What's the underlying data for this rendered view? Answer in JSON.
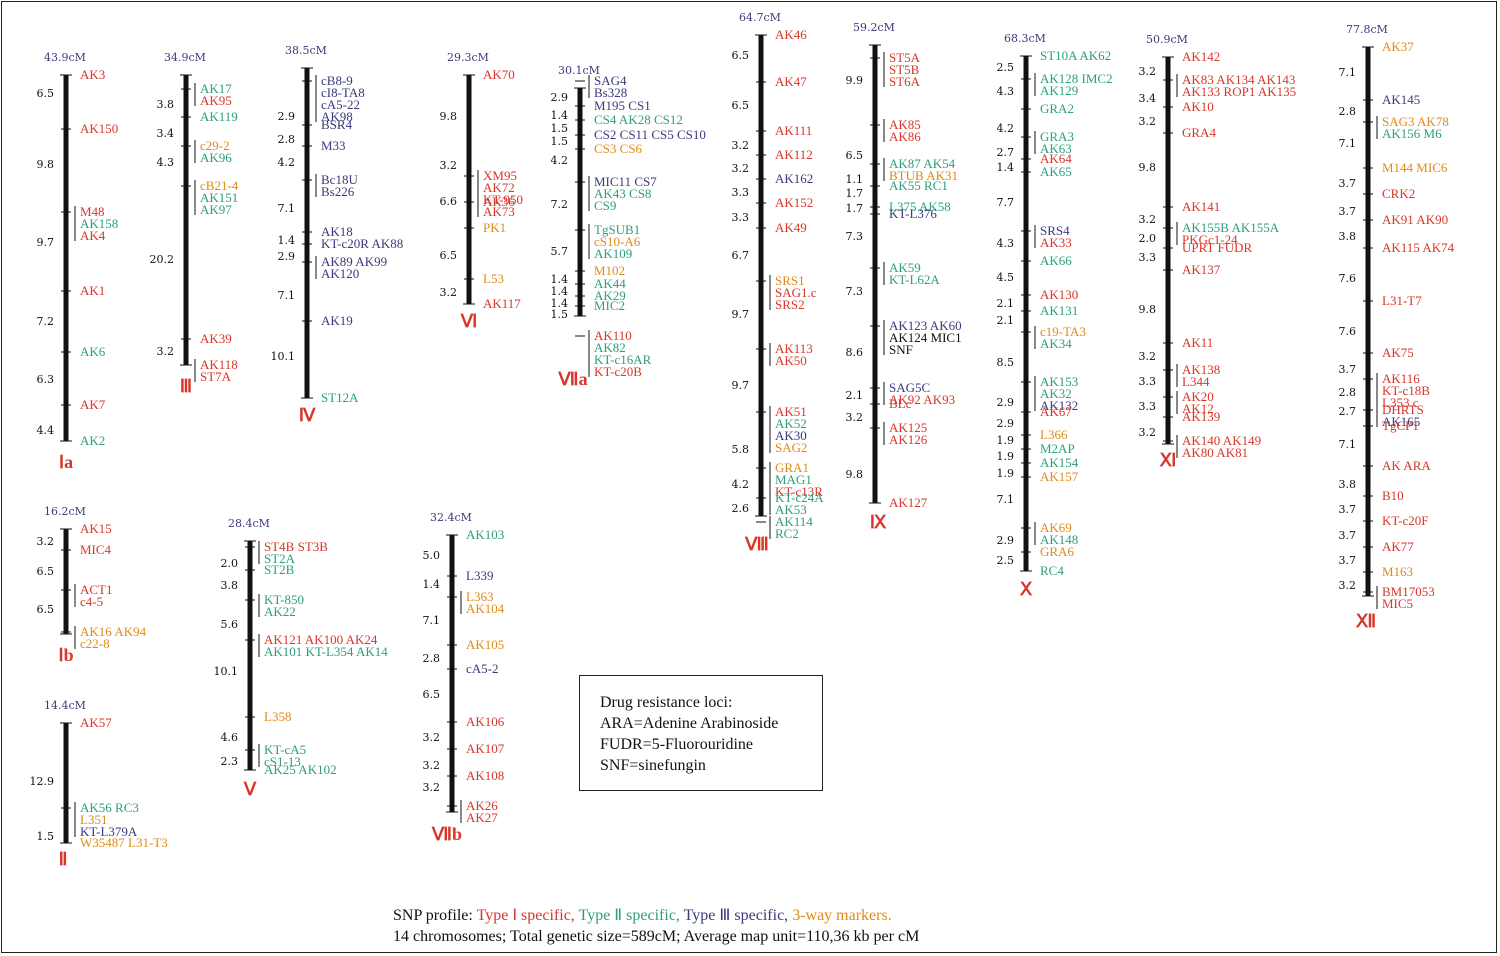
{
  "colors": {
    "I": "#d8362a",
    "II": "#2e9e7c",
    "III": "#3a3a7c",
    "3way": "#e08a18",
    "other": "#111111",
    "axis": "#111111"
  },
  "chromosomes": [
    {
      "id": "Ia",
      "name": "Ⅰa",
      "total": "43.9cM",
      "seg_lengths": [
        6.5,
        9.8,
        9.7,
        7.2,
        6.3,
        4.4
      ],
      "rows": [
        [
          "AK3"
        ],
        [
          "AK150"
        ],
        [],
        [
          "M48",
          "AK158",
          "AK4"
        ],
        [],
        [
          "AK1"
        ],
        [
          "AK6"
        ],
        [
          "AK7"
        ],
        [
          "AK2"
        ]
      ],
      "colors": [
        [
          "I"
        ],
        [
          "I"
        ],
        [],
        [
          "I",
          "II",
          "I"
        ],
        [],
        [
          "I"
        ],
        [
          "II"
        ],
        [
          "I"
        ],
        [
          "II"
        ]
      ]
    },
    {
      "id": "III",
      "name": "Ⅲ",
      "total": "34.9cM",
      "seg_lengths": [
        3.8,
        3.4,
        4.3,
        20.2,
        3.2
      ],
      "rows": [
        [
          "AK17",
          "AK95"
        ],
        [
          "AK119"
        ],
        [
          "c29-2",
          "AK96"
        ],
        [
          "cB21-4",
          "AK151",
          "AK97"
        ],
        [
          "AK39"
        ],
        [
          "AK118",
          "ST7A"
        ]
      ],
      "colors": [
        [
          "II",
          "I"
        ],
        [
          "II"
        ],
        [
          "3way",
          "II"
        ],
        [
          "3way",
          "II",
          "II"
        ],
        [
          "I"
        ],
        [
          "I",
          "I"
        ]
      ]
    },
    {
      "id": "IV",
      "name": "Ⅳ",
      "total": "38.5cM",
      "seg_lengths": [
        2.9,
        2.8,
        4.2,
        7.1,
        1.4,
        2.9,
        7.1,
        10.1
      ],
      "rows": [
        [
          "cB8-9",
          "cI8-TA8",
          "cA5-22",
          "AK98"
        ],
        [
          "BSR4"
        ],
        [
          "M33"
        ],
        [
          "Bc18U",
          "Bs226"
        ],
        [
          "AK18"
        ],
        [
          "KT-c20R AK88"
        ],
        [
          "AK89 AK99",
          "AK120"
        ],
        [
          "AK19"
        ],
        [
          "ST12A"
        ]
      ],
      "colors": [
        [
          "III",
          "III",
          "III",
          "III"
        ],
        [
          "III"
        ],
        [
          "III"
        ],
        [
          "III",
          "III"
        ],
        [
          "III"
        ],
        [
          "III"
        ],
        [
          "III",
          "III"
        ],
        [
          "III"
        ],
        [
          "II"
        ]
      ]
    },
    {
      "id": "VI",
      "name": "Ⅵ",
      "total": "29.3cM",
      "seg_lengths": [
        9.8,
        3.2,
        6.6,
        6.5,
        3.2
      ],
      "rows": [
        [
          "AK70"
        ],
        [
          "XM95",
          "AK72",
          "KT-950",
          "AK73"
        ],
        [
          "AK36"
        ],
        [
          "PK1"
        ],
        [
          "L53"
        ],
        [
          "AK117"
        ]
      ],
      "colors": [
        [
          "I"
        ],
        [
          "I",
          "I",
          "I",
          "I"
        ],
        [
          "I"
        ],
        [
          "3way"
        ],
        [
          "3way"
        ],
        [
          "I"
        ]
      ]
    },
    {
      "id": "VIIa",
      "name": "Ⅶa",
      "total": "30.1cM",
      "seg_lengths": [
        2.9,
        1.4,
        1.5,
        1.5,
        4.2,
        7.2,
        5.7,
        1.4,
        1.4,
        1.4,
        1.5
      ],
      "rows": [
        [
          "SAG4",
          "Bs328"
        ],
        [
          "M195 CS1"
        ],
        [
          "CS4 AK28 CS12"
        ],
        [
          "CS2 CS11 CS5 CS10"
        ],
        [
          "CS3 CS6"
        ],
        [
          "MIC11 CS7",
          "AK43 CS8",
          "CS9"
        ],
        [
          "TgSUB1",
          "cS10-A6",
          "AK109"
        ],
        [
          "M102"
        ],
        [
          "AK44"
        ],
        [
          "AK29"
        ],
        [
          "MIC2"
        ],
        [
          "AK110",
          "AK82",
          "KT-c16AR",
          "KT-c20B"
        ]
      ],
      "colors": [
        [
          "III",
          "III"
        ],
        [
          "III"
        ],
        [
          "II"
        ],
        [
          "III"
        ],
        [
          "3way"
        ],
        [
          "III",
          "II",
          "II"
        ],
        [
          "II",
          "3way",
          "II"
        ],
        [
          "3way"
        ],
        [
          "II"
        ],
        [
          "II"
        ],
        [
          "II"
        ],
        [
          "I",
          "II",
          "II",
          "I"
        ]
      ]
    },
    {
      "id": "VIII",
      "name": "Ⅷ",
      "total": "64.7cM",
      "seg_lengths": [
        6.5,
        6.5,
        3.2,
        3.2,
        3.3,
        3.3,
        6.7,
        9.7,
        9.7,
        5.8,
        4.2,
        2.6
      ],
      "rows": [
        [
          "AK46"
        ],
        [
          "AK47"
        ],
        [
          "AK111"
        ],
        [
          "AK112"
        ],
        [
          "AK162"
        ],
        [
          "AK152"
        ],
        [
          "AK49"
        ],
        [
          "SRS1",
          "SAG1.c",
          "SRS2"
        ],
        [
          "AK113",
          "AK50"
        ],
        [
          "AK51",
          "AK52",
          "AK30",
          "SAG2"
        ],
        [
          "GRA1",
          "MAG1",
          "KT-c13R"
        ],
        [
          "KT-c24A",
          "AK53"
        ],
        [
          "AK114",
          "RC2"
        ]
      ],
      "colors": [
        [
          "I"
        ],
        [
          "I"
        ],
        [
          "I"
        ],
        [
          "I"
        ],
        [
          "III"
        ],
        [
          "I"
        ],
        [
          "I"
        ],
        [
          "3way",
          "I",
          "I"
        ],
        [
          "I",
          "I"
        ],
        [
          "I",
          "II",
          "III",
          "3way"
        ],
        [
          "3way",
          "II",
          "I"
        ],
        [
          "II",
          "II"
        ],
        [
          "II",
          "II"
        ]
      ]
    },
    {
      "id": "IX",
      "name": "Ⅸ",
      "total": "59.2cM",
      "seg_lengths": [
        9.9,
        6.5,
        1.1,
        1.7,
        1.7,
        7.3,
        7.3,
        8.6,
        2.1,
        3.2,
        9.8
      ],
      "rows": [
        [
          "ST5A",
          "ST5B",
          "ST6A"
        ],
        [
          "AK85",
          "AK86"
        ],
        [
          "AK87 AK54",
          "BTUB AK31"
        ],
        [
          "AK55 RC1"
        ],
        [
          "L375 AK58"
        ],
        [
          "KT-L376"
        ],
        [
          "AK59",
          "KT-L62A"
        ],
        [
          "AK123 AK60",
          "AK124 MIC1",
          "SNF"
        ],
        [
          "SAG5C",
          "AK92 AK93"
        ],
        [
          "BLc"
        ],
        [
          "AK125",
          "AK126"
        ],
        [
          "AK127"
        ]
      ],
      "colors": [
        [
          "I",
          "I",
          "I"
        ],
        [
          "I",
          "I"
        ],
        [
          "II",
          "3way"
        ],
        [
          "II"
        ],
        [
          "II"
        ],
        [
          "III"
        ],
        [
          "II",
          "II"
        ],
        [
          "III",
          "other",
          "other"
        ],
        [
          "III",
          "I"
        ],
        [
          "I"
        ],
        [
          "I",
          "I"
        ],
        [
          "I"
        ]
      ]
    },
    {
      "id": "X",
      "name": "Ⅹ",
      "total": "68.3cM",
      "seg_lengths": [
        2.5,
        4.3,
        4.2,
        2.7,
        1.4,
        7.7,
        4.3,
        4.5,
        2.1,
        2.1,
        8.5,
        2.9,
        2.9,
        1.9,
        1.9,
        1.9,
        7.1,
        2.9,
        2.5
      ],
      "rows": [
        [
          "ST10A AK62"
        ],
        [
          "AK128 IMC2",
          "AK129"
        ],
        [
          "GRA2"
        ],
        [
          "GRA3",
          "AK63"
        ],
        [
          "AK64"
        ],
        [
          "AK65"
        ],
        [
          "SRS4",
          "AK33"
        ],
        [
          "AK66"
        ],
        [
          "AK130"
        ],
        [
          "AK131"
        ],
        [
          "c19-TA3",
          "AK34"
        ],
        [
          "AK153",
          "AK32",
          "AK132"
        ],
        [
          "AK67"
        ],
        [
          "L366"
        ],
        [
          "M2AP"
        ],
        [
          "AK154"
        ],
        [
          "AK157"
        ],
        [
          "AK69",
          "AK148"
        ],
        [
          "GRA6"
        ],
        [
          "RC4"
        ]
      ],
      "colors": [
        [
          "II"
        ],
        [
          "II",
          "II"
        ],
        [
          "II"
        ],
        [
          "II",
          "II"
        ],
        [
          "I"
        ],
        [
          "II"
        ],
        [
          "III",
          "I"
        ],
        [
          "II"
        ],
        [
          "I"
        ],
        [
          "II"
        ],
        [
          "3way",
          "II"
        ],
        [
          "II",
          "II",
          "III"
        ],
        [
          "I"
        ],
        [
          "3way"
        ],
        [
          "II"
        ],
        [
          "II"
        ],
        [
          "3way"
        ],
        [
          "3way",
          "II"
        ],
        [
          "3way"
        ],
        [
          "II"
        ]
      ]
    },
    {
      "id": "XI",
      "name": "Ⅺ",
      "total": "50.9cM",
      "seg_lengths": [
        3.2,
        3.4,
        3.2,
        9.8,
        3.2,
        2.0,
        3.3,
        9.8,
        3.2,
        3.3,
        3.3,
        3.2
      ],
      "rows": [
        [
          "AK142"
        ],
        [
          "AK83 AK134 AK143",
          "AK133 ROP1 AK135"
        ],
        [
          "AK10"
        ],
        [
          "GRA4"
        ],
        [
          "AK141"
        ],
        [
          "AK155B AK155A",
          "PKGc1-24"
        ],
        [
          "UPRT FUDR"
        ],
        [
          "AK137"
        ],
        [
          "AK11"
        ],
        [
          "AK138",
          "L344"
        ],
        [
          "AK20",
          "AK12"
        ],
        [
          "AK139"
        ],
        [
          "AK140 AK149",
          "AK80 AK81"
        ]
      ],
      "colors": [
        [
          "I"
        ],
        [
          "I",
          "I"
        ],
        [
          "I"
        ],
        [
          "I"
        ],
        [
          "I"
        ],
        [
          "II",
          "I"
        ],
        [
          "I"
        ],
        [
          "I"
        ],
        [
          "I"
        ],
        [
          "I",
          "I"
        ],
        [
          "I",
          "I"
        ],
        [
          "I"
        ],
        [
          "I",
          "I"
        ]
      ]
    },
    {
      "id": "XII",
      "name": "Ⅻ",
      "total": "77.8cM",
      "seg_lengths": [
        7.1,
        2.8,
        7.1,
        3.7,
        3.7,
        3.8,
        7.6,
        7.6,
        3.7,
        2.8,
        2.7,
        7.1,
        3.8,
        3.7,
        3.7,
        3.7,
        3.2
      ],
      "rows": [
        [
          "AK37"
        ],
        [
          "AK145"
        ],
        [
          "SAG3 AK78",
          "AK156 M6"
        ],
        [
          "M144 MIC6"
        ],
        [
          "CRK2"
        ],
        [
          "AK91 AK90"
        ],
        [
          "AK115 AK74"
        ],
        [
          "L31-T7"
        ],
        [
          "AK75"
        ],
        [
          "AK116",
          "KT-c18B",
          "L353.c"
        ],
        [
          "DHRTS",
          "AK165"
        ],
        [
          "TgCP1"
        ],
        [
          "AK ARA"
        ],
        [
          "B10"
        ],
        [
          "KT-c20F"
        ],
        [
          "AK77"
        ],
        [
          "M163"
        ],
        [
          "BM17053",
          "MIC5"
        ]
      ],
      "colors": [
        [
          "3way"
        ],
        [
          "III"
        ],
        [
          "3way",
          "II"
        ],
        [
          "3way"
        ],
        [
          "I"
        ],
        [
          "I"
        ],
        [
          "I"
        ],
        [
          "I"
        ],
        [
          "I"
        ],
        [
          "I",
          "I",
          "I"
        ],
        [
          "I",
          "III"
        ],
        [
          "I"
        ],
        [
          "I"
        ],
        [
          "I"
        ],
        [
          "I"
        ],
        [
          "I"
        ],
        [
          "3way"
        ],
        [
          "I",
          "I"
        ]
      ]
    },
    {
      "id": "Ib",
      "name": "Ⅰb",
      "total": "16.2cM",
      "seg_lengths": [
        3.2,
        6.5,
        6.5
      ],
      "rows": [
        [
          "AK15"
        ],
        [
          "MIC4"
        ],
        [
          "ACT1",
          "c4-5"
        ],
        [
          "AK16 AK94",
          "c22-8"
        ]
      ],
      "colors": [
        [
          "I"
        ],
        [
          "I"
        ],
        [
          "I",
          "I"
        ],
        [
          "3way",
          "3way"
        ]
      ]
    },
    {
      "id": "V",
      "name": "Ⅴ",
      "total": "28.4cM",
      "seg_lengths": [
        2.0,
        3.8,
        5.6,
        10.1,
        4.6,
        2.3
      ],
      "rows": [
        [
          "ST4B ST3B",
          "ST2A"
        ],
        [
          "ST2B"
        ],
        [
          "KT-850",
          "AK22"
        ],
        [
          "AK121 AK100 AK24",
          "AK101 KT-L354 AK14"
        ],
        [
          "L358"
        ],
        [
          "KT-cA5",
          "cS1-13"
        ],
        [
          "AK25 AK102"
        ]
      ],
      "colors": [
        [
          "I",
          "II"
        ],
        [
          "II"
        ],
        [
          "II",
          "II"
        ],
        [
          "I",
          "II"
        ],
        [
          "3way"
        ],
        [
          "II",
          "II"
        ],
        [
          "II"
        ]
      ]
    },
    {
      "id": "VIIb",
      "name": "Ⅶb",
      "total": "32.4cM",
      "seg_lengths": [
        5.0,
        1.4,
        7.1,
        2.8,
        6.5,
        3.2,
        3.2,
        3.2
      ],
      "rows": [
        [
          "AK103"
        ],
        [
          "L339"
        ],
        [
          "L363",
          "AK104"
        ],
        [
          "AK105"
        ],
        [
          "cA5-2"
        ],
        [
          "AK106"
        ],
        [
          "AK107"
        ],
        [
          "AK108"
        ],
        [
          "AK26",
          "AK27"
        ]
      ],
      "colors": [
        [
          "II"
        ],
        [
          "III"
        ],
        [
          "3way",
          "3way"
        ],
        [
          "3way"
        ],
        [
          "III"
        ],
        [
          "I"
        ],
        [
          "I"
        ],
        [
          "I"
        ],
        [
          "I",
          "I"
        ]
      ]
    },
    {
      "id": "II",
      "name": "Ⅱ",
      "total": "14.4cM",
      "seg_lengths": [
        12.9,
        1.5
      ],
      "rows": [
        [
          "AK57"
        ],
        [
          "AK56 RC3",
          "L351",
          "KT-L379A"
        ],
        [
          "W35487 L31-T3"
        ]
      ],
      "colors": [
        [
          "I"
        ],
        [
          "II",
          "3way",
          "III"
        ],
        [
          "3way"
        ]
      ]
    }
  ],
  "legend": {
    "title": "Drug resistance loci:",
    "lines": [
      "ARA=Adenine Arabinoside",
      "FUDR=5-Fluorouridine",
      "SNF=sinefungin"
    ]
  },
  "footer": {
    "prefix": "SNP profile:",
    "type1": "Type Ⅰ specific,",
    "type2": "Type Ⅱ specific,",
    "type3": "Type Ⅲ specific,",
    "threeway": "3-way markers.",
    "line2": "14 chromosomes; Total genetic size=589cM; Average map unit=110,36 kb per cM"
  }
}
